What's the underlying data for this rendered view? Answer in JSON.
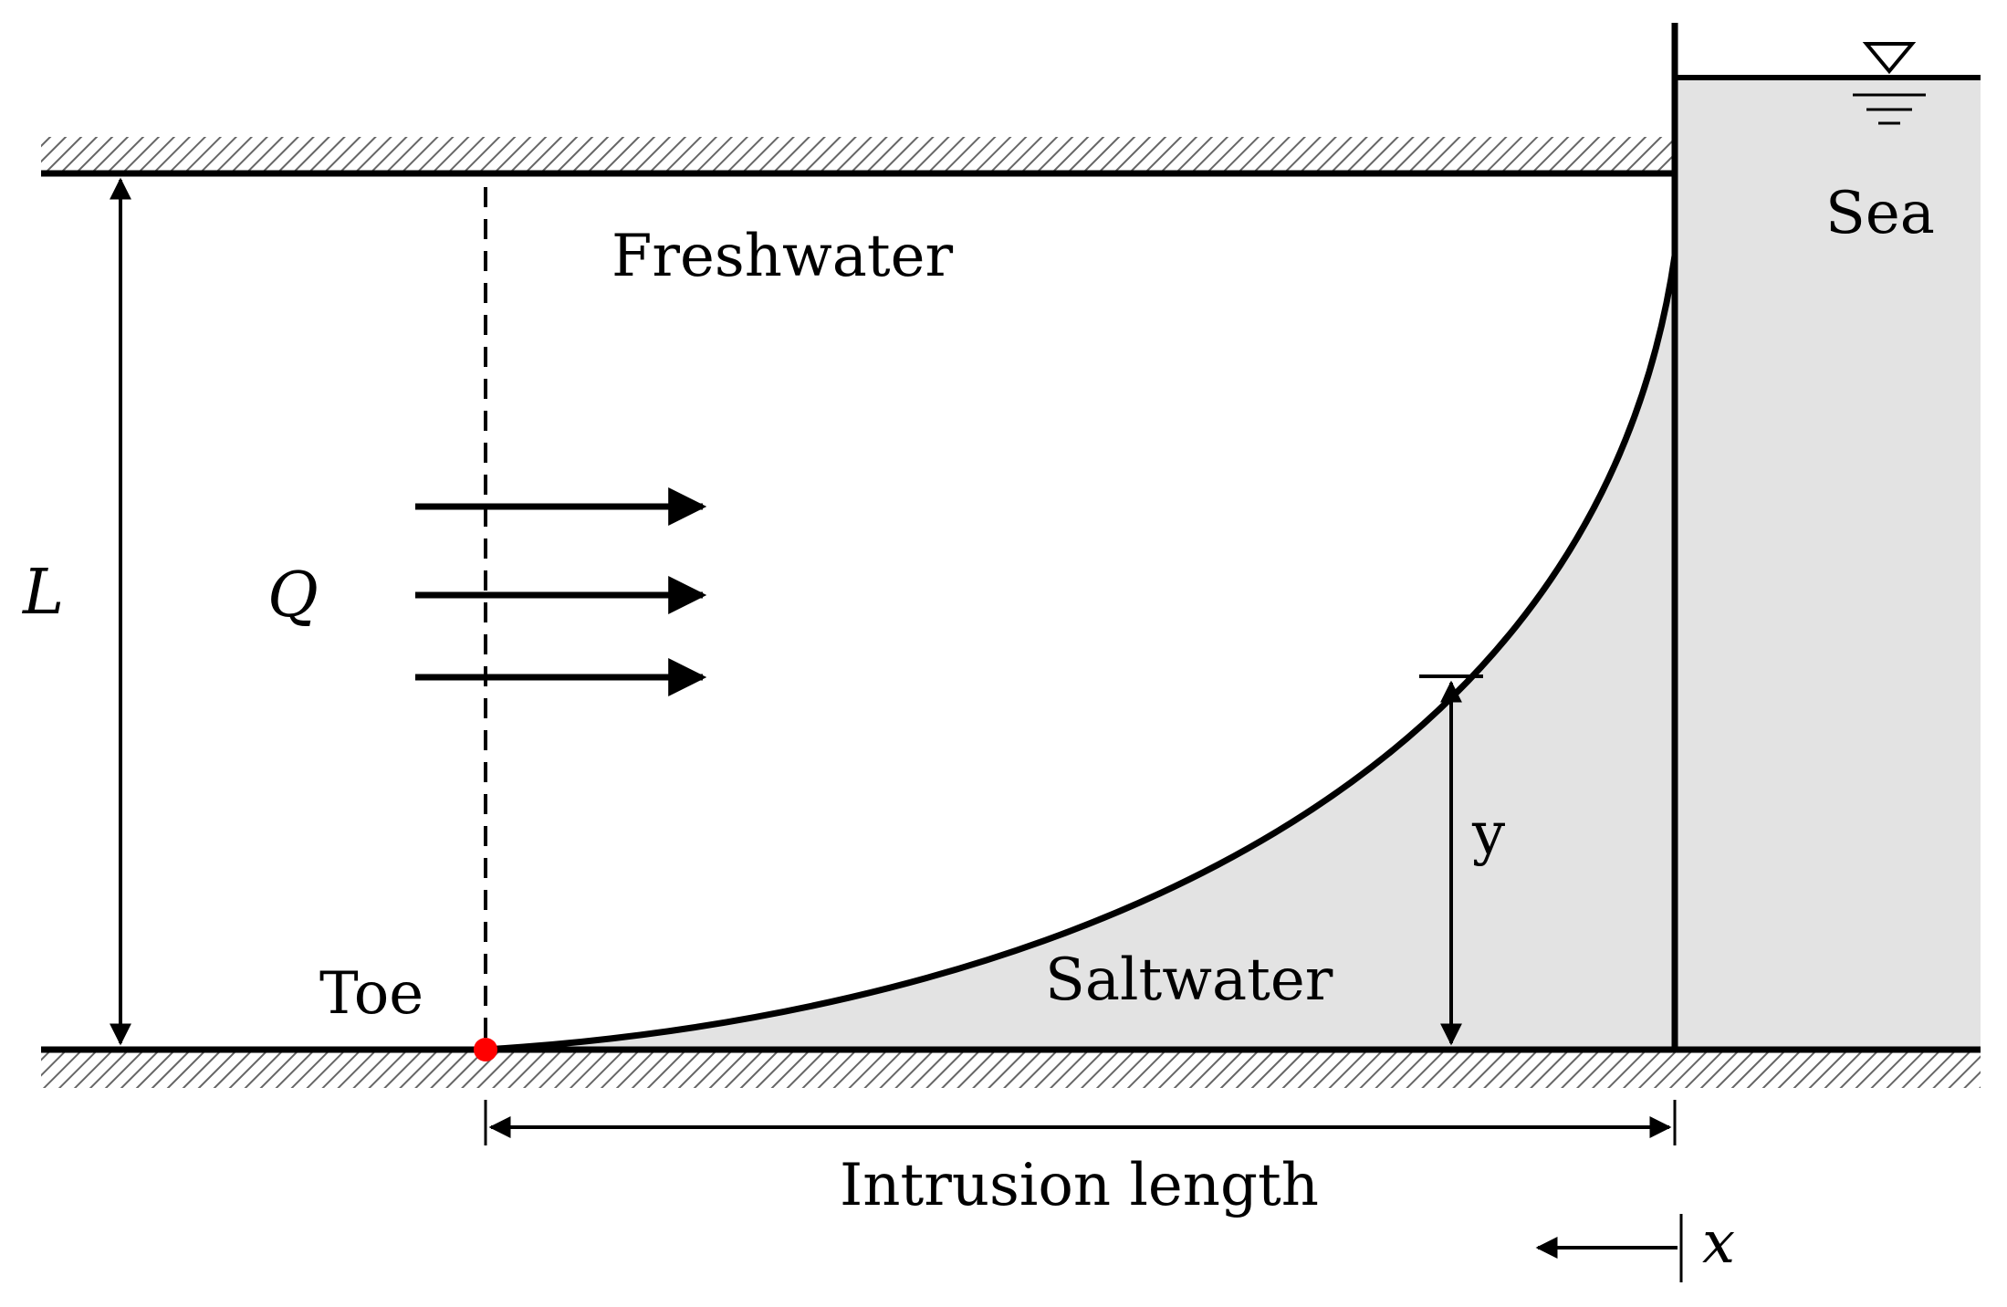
{
  "labels": {
    "freshwater": "Freshwater",
    "saltwater": "Saltwater",
    "sea": "Sea",
    "toe": "Toe",
    "aquifer_thickness": "L",
    "flow": "Q",
    "interface_height": "y",
    "intrusion_length": "Intrusion length",
    "x_axis": "x"
  },
  "colors": {
    "line": "#000000",
    "water_fill": "#e3e3e3",
    "toe_point": "#ff0000",
    "toe_label": "#ff0000",
    "hatch": "#666666"
  },
  "icons": {
    "water_level": "inverted-triangle-water-level-icon"
  }
}
